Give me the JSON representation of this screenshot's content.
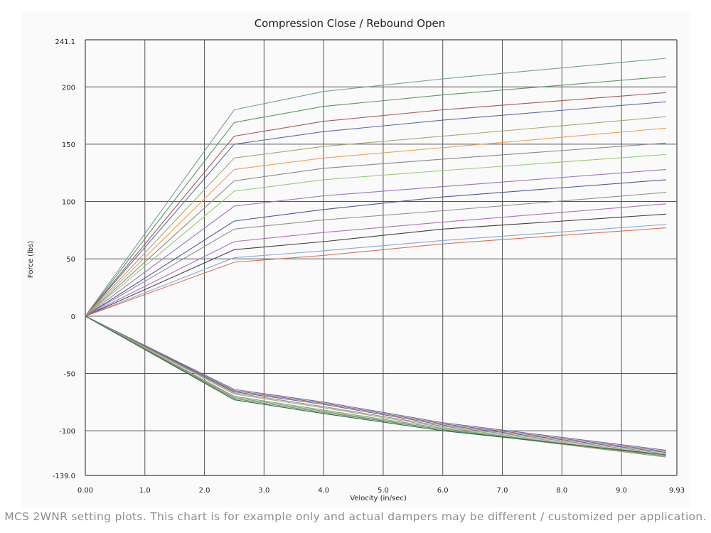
{
  "chart_data": {
    "type": "line",
    "title": "Compression Close / Rebound Open",
    "xlabel": "Velocity (in/sec)",
    "ylabel": "Force (lbs)",
    "xlim": [
      0,
      9.93
    ],
    "ylim": [
      -139.0,
      241.1
    ],
    "x_ticks": [
      "0.00",
      "1.0",
      "2.0",
      "3.0",
      "4.0",
      "5.0",
      "6.0",
      "7.0",
      "8.0",
      "9.0",
      "9.93"
    ],
    "y_ticks": [
      "241.1",
      "200",
      "150",
      "100",
      "50",
      "0",
      "-50",
      "-100",
      "-139.0"
    ],
    "grid": true,
    "legend": "none",
    "x": [
      0,
      2.5,
      4.0,
      6.0,
      9.75
    ],
    "series": [
      {
        "color": "#6fa0a0",
        "values": [
          0,
          180,
          196,
          207,
          225
        ]
      },
      {
        "color": "#5a9a5a",
        "values": [
          0,
          169,
          183,
          193,
          209
        ]
      },
      {
        "color": "#a45a5a",
        "values": [
          0,
          157,
          170,
          180,
          195
        ]
      },
      {
        "color": "#5a6ab0",
        "values": [
          0,
          150,
          161,
          171,
          187
        ]
      },
      {
        "color": "#a8a870",
        "values": [
          0,
          138,
          148,
          157,
          174
        ]
      },
      {
        "color": "#f0a050",
        "values": [
          0,
          128,
          138,
          147,
          164
        ]
      },
      {
        "color": "#8a8a8a",
        "values": [
          0,
          118,
          129,
          137,
          151
        ]
      },
      {
        "color": "#90d070",
        "values": [
          0,
          109,
          119,
          127,
          141
        ]
      },
      {
        "color": "#a070c0",
        "values": [
          0,
          96,
          105,
          113,
          128
        ]
      },
      {
        "color": "#4a5aa0",
        "values": [
          0,
          83,
          93,
          104,
          119
        ]
      },
      {
        "color": "#909090",
        "values": [
          0,
          76,
          84,
          92,
          108
        ]
      },
      {
        "color": "#b070c0",
        "values": [
          0,
          65,
          73,
          82,
          98
        ]
      },
      {
        "color": "#404040",
        "values": [
          0,
          58,
          65,
          76,
          89
        ]
      },
      {
        "color": "#80a8e0",
        "values": [
          0,
          51,
          57,
          66,
          80
        ]
      },
      {
        "color": "#e07050",
        "values": [
          0,
          47,
          53,
          63,
          77
        ]
      },
      {
        "color": "#6070b0",
        "values": [
          0,
          -64,
          -75,
          -93,
          -117
        ]
      },
      {
        "color": "#a06060",
        "values": [
          0,
          -65,
          -76,
          -94,
          -118
        ]
      },
      {
        "color": "#7060a0",
        "values": [
          0,
          -66,
          -77,
          -95,
          -119
        ]
      },
      {
        "color": "#909090",
        "values": [
          0,
          -67,
          -79,
          -96,
          -120
        ]
      },
      {
        "color": "#a8a870",
        "values": [
          0,
          -68,
          -80,
          -97,
          -121
        ]
      },
      {
        "color": "#70a080",
        "values": [
          0,
          -70,
          -82,
          -98,
          -122
        ]
      },
      {
        "color": "#a89070",
        "values": [
          0,
          -71,
          -83,
          -99,
          -123
        ]
      },
      {
        "color": "#5a9a5a",
        "values": [
          0,
          -72,
          -84,
          -99,
          -122
        ]
      },
      {
        "color": "#2a6a4a",
        "values": [
          0,
          -73,
          -85,
          -100,
          -121
        ]
      }
    ]
  },
  "caption": "MCS 2WNR setting plots. This chart is for example only and actual dampers may be different / customized per application."
}
